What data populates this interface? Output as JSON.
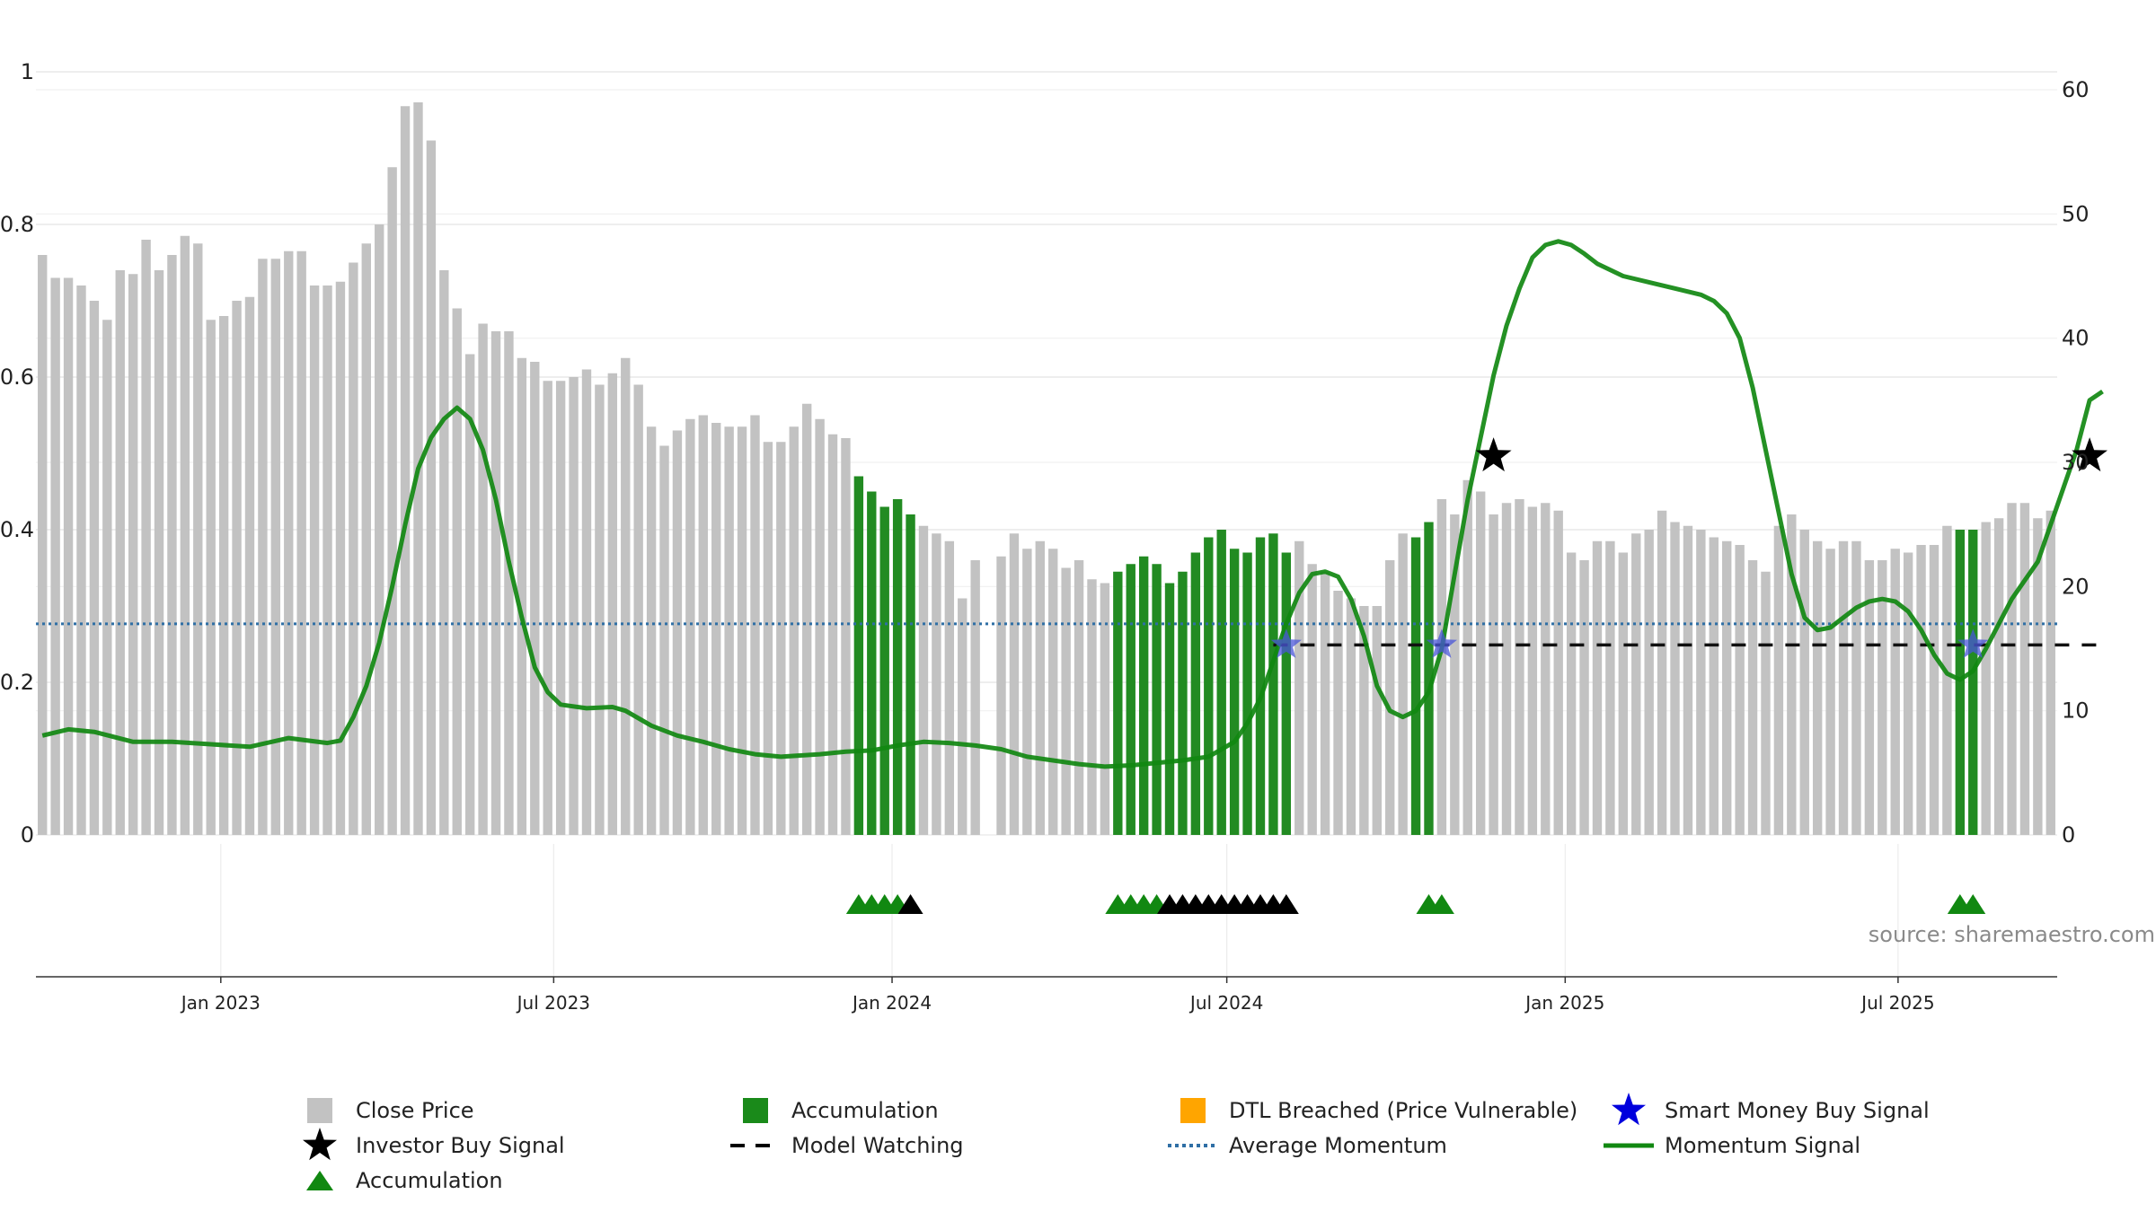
{
  "chart_data": {
    "type": "bar",
    "source": "source: sharemaestro.com",
    "left_axis": {
      "ticks": [
        "0",
        "0.2",
        "0.4",
        "0.6",
        "0.8",
        "1"
      ],
      "range": [
        0,
        1
      ]
    },
    "right_axis": {
      "ticks": [
        "0",
        "10",
        "20",
        "30",
        "40",
        "50",
        "60"
      ],
      "range": [
        0,
        60
      ]
    },
    "x_axis": {
      "ticks": [
        "Jan 2023",
        "Jul 2023",
        "Jan 2024",
        "Jul 2024",
        "Jan 2025",
        "Jul 2025"
      ],
      "start": "2022-09-26",
      "end": "2025-09-22"
    },
    "close_price": [
      0.76,
      0.73,
      0.73,
      0.72,
      0.7,
      0.675,
      0.74,
      0.735,
      0.78,
      0.74,
      0.76,
      0.785,
      0.775,
      0.675,
      0.68,
      0.7,
      0.705,
      0.755,
      0.755,
      0.765,
      0.765,
      0.72,
      0.72,
      0.725,
      0.75,
      0.775,
      0.8,
      0.875,
      0.955,
      0.96,
      0.91,
      0.74,
      0.69,
      0.63,
      0.67,
      0.66,
      0.66,
      0.625,
      0.62,
      0.595,
      0.595,
      0.6,
      0.61,
      0.59,
      0.605,
      0.625,
      0.59,
      0.535,
      0.51,
      0.53,
      0.545,
      0.55,
      0.54,
      0.535,
      0.535,
      0.55,
      0.515,
      0.515,
      0.535,
      0.565,
      0.545,
      0.525,
      0.52,
      0.47,
      0.45,
      0.43,
      0.44,
      0.42,
      0.405,
      0.395,
      0.385,
      0.31,
      0.36,
      null,
      0.365,
      0.395,
      0.375,
      0.385,
      0.375,
      0.35,
      0.36,
      0.335,
      0.33,
      0.345,
      0.355,
      0.365,
      0.355,
      0.33,
      0.345,
      0.37,
      0.39,
      0.4,
      0.375,
      0.37,
      0.39,
      0.395,
      0.37,
      0.385,
      0.355,
      0.345,
      0.32,
      0.31,
      0.3,
      0.3,
      0.36,
      0.395,
      0.39,
      0.41,
      0.44,
      0.42,
      0.465,
      0.45,
      0.42,
      0.435,
      0.44,
      0.43,
      0.435,
      0.425,
      0.37,
      0.36,
      0.385,
      0.385,
      0.37,
      0.395,
      0.4,
      0.425,
      0.41,
      0.405,
      0.4,
      0.39,
      0.385,
      0.38,
      0.36,
      0.345,
      0.405,
      0.42,
      0.4,
      0.385,
      0.375,
      0.385,
      0.385,
      0.36,
      0.36,
      0.375,
      0.37,
      0.38,
      0.38,
      0.405,
      0.4,
      0.4,
      0.41,
      0.415,
      0.435,
      0.435,
      0.415,
      0.425
    ],
    "accumulation_bars": [
      63,
      64,
      65,
      66,
      67,
      83,
      84,
      85,
      86,
      87,
      88,
      89,
      90,
      91,
      92,
      93,
      94,
      95,
      96,
      106,
      107,
      148,
      149
    ],
    "momentum_signal": [
      [
        0,
        8
      ],
      [
        2,
        8.5
      ],
      [
        4,
        8.3
      ],
      [
        7,
        7.5
      ],
      [
        10,
        7.5
      ],
      [
        13,
        7.3
      ],
      [
        16,
        7.1
      ],
      [
        19,
        7.8
      ],
      [
        22,
        7.4
      ],
      [
        23,
        7.6
      ],
      [
        24,
        9.5
      ],
      [
        25,
        12
      ],
      [
        26,
        15.5
      ],
      [
        27,
        20
      ],
      [
        28,
        25
      ],
      [
        29,
        29.5
      ],
      [
        30,
        32
      ],
      [
        31,
        33.5
      ],
      [
        32,
        34.4
      ],
      [
        33,
        33.5
      ],
      [
        34,
        31
      ],
      [
        35,
        27
      ],
      [
        36,
        22
      ],
      [
        37,
        17.5
      ],
      [
        38,
        13.5
      ],
      [
        39,
        11.5
      ],
      [
        40,
        10.5
      ],
      [
        42,
        10.2
      ],
      [
        44,
        10.3
      ],
      [
        45,
        10
      ],
      [
        47,
        8.8
      ],
      [
        49,
        8
      ],
      [
        51,
        7.5
      ],
      [
        53,
        6.9
      ],
      [
        55,
        6.5
      ],
      [
        57,
        6.3
      ],
      [
        60,
        6.5
      ],
      [
        62,
        6.7
      ],
      [
        64,
        6.8
      ],
      [
        66,
        7.2
      ],
      [
        68,
        7.5
      ],
      [
        70,
        7.4
      ],
      [
        72,
        7.2
      ],
      [
        74,
        6.9
      ],
      [
        76,
        6.3
      ],
      [
        78,
        6
      ],
      [
        80,
        5.7
      ],
      [
        82,
        5.5
      ],
      [
        84,
        5.6
      ],
      [
        86,
        5.8
      ],
      [
        88,
        6
      ],
      [
        90,
        6.3
      ],
      [
        92,
        7.5
      ],
      [
        93,
        9
      ],
      [
        94,
        11
      ],
      [
        95,
        14
      ],
      [
        96,
        17
      ],
      [
        97,
        19.5
      ],
      [
        98,
        21
      ],
      [
        99,
        21.2
      ],
      [
        100,
        20.8
      ],
      [
        101,
        19
      ],
      [
        102,
        16
      ],
      [
        103,
        12
      ],
      [
        104,
        10
      ],
      [
        105,
        9.5
      ],
      [
        106,
        10
      ],
      [
        107,
        11.5
      ],
      [
        108,
        15
      ],
      [
        109,
        21
      ],
      [
        110,
        27
      ],
      [
        111,
        32
      ],
      [
        112,
        37
      ],
      [
        113,
        41
      ],
      [
        114,
        44
      ],
      [
        115,
        46.5
      ],
      [
        116,
        47.5
      ],
      [
        117,
        47.8
      ],
      [
        118,
        47.5
      ],
      [
        119,
        46.8
      ],
      [
        120,
        46
      ],
      [
        121,
        45.5
      ],
      [
        122,
        45
      ],
      [
        124,
        44.5
      ],
      [
        126,
        44
      ],
      [
        128,
        43.5
      ],
      [
        129,
        43
      ],
      [
        130,
        42
      ],
      [
        131,
        40
      ],
      [
        132,
        36
      ],
      [
        133,
        31
      ],
      [
        134,
        26
      ],
      [
        135,
        21
      ],
      [
        136,
        17.5
      ],
      [
        137,
        16.5
      ],
      [
        138,
        16.7
      ],
      [
        139,
        17.5
      ],
      [
        140,
        18.3
      ],
      [
        141,
        18.8
      ],
      [
        142,
        19
      ],
      [
        143,
        18.8
      ],
      [
        144,
        18
      ],
      [
        145,
        16.5
      ],
      [
        146,
        14.5
      ],
      [
        147,
        13
      ],
      [
        148,
        12.5
      ],
      [
        149,
        13.2
      ],
      [
        150,
        15
      ],
      [
        151,
        17
      ],
      [
        152,
        19
      ],
      [
        153,
        20.5
      ],
      [
        154,
        22
      ],
      [
        155,
        25
      ],
      [
        156,
        28
      ],
      [
        157,
        31
      ],
      [
        158,
        35
      ],
      [
        159,
        35.7
      ]
    ],
    "average_momentum": 17,
    "model_watching_level": 15.3,
    "model_watching_range": [
      95,
      159
    ],
    "investor_buy_signals": [
      [
        112,
        30.5
      ],
      [
        158,
        30.5
      ]
    ],
    "smart_money_buy_signals": [
      [
        96,
        15.3
      ],
      [
        108,
        15.3
      ],
      [
        149,
        15.3
      ]
    ],
    "accumulation_markers": {
      "green": [
        63,
        64,
        65,
        66,
        83,
        84,
        85,
        86,
        107,
        108,
        148,
        149
      ],
      "black": [
        67,
        87,
        88,
        89,
        90,
        91,
        92,
        93,
        94,
        95,
        96
      ]
    },
    "legend": [
      {
        "label": "Close Price",
        "symbol": "square",
        "color": "#c2c2c2"
      },
      {
        "label": "Accumulation",
        "symbol": "square",
        "color": "#1a8a1a"
      },
      {
        "label": "DTL Breached (Price Vulnerable)",
        "symbol": "square",
        "color": "#ffa500"
      },
      {
        "label": "Smart Money Buy Signal",
        "symbol": "star",
        "color": "#0000dd"
      },
      {
        "label": "Investor Buy Signal",
        "symbol": "star",
        "color": "#000000"
      },
      {
        "label": "Model Watching",
        "symbol": "dash",
        "color": "#000000"
      },
      {
        "label": "Average Momentum",
        "symbol": "dotted",
        "color": "#2f6fa5"
      },
      {
        "label": "Momentum Signal",
        "symbol": "line",
        "color": "#118811"
      },
      {
        "label": "Accumulation",
        "symbol": "triangle",
        "color": "#118811"
      }
    ],
    "colors": {
      "close": "#c2c2c2",
      "accum": "#228b22",
      "momentum": "#118811",
      "avg": "#2f6fa5",
      "grid": "#e8e8e8"
    },
    "grid": true
  }
}
